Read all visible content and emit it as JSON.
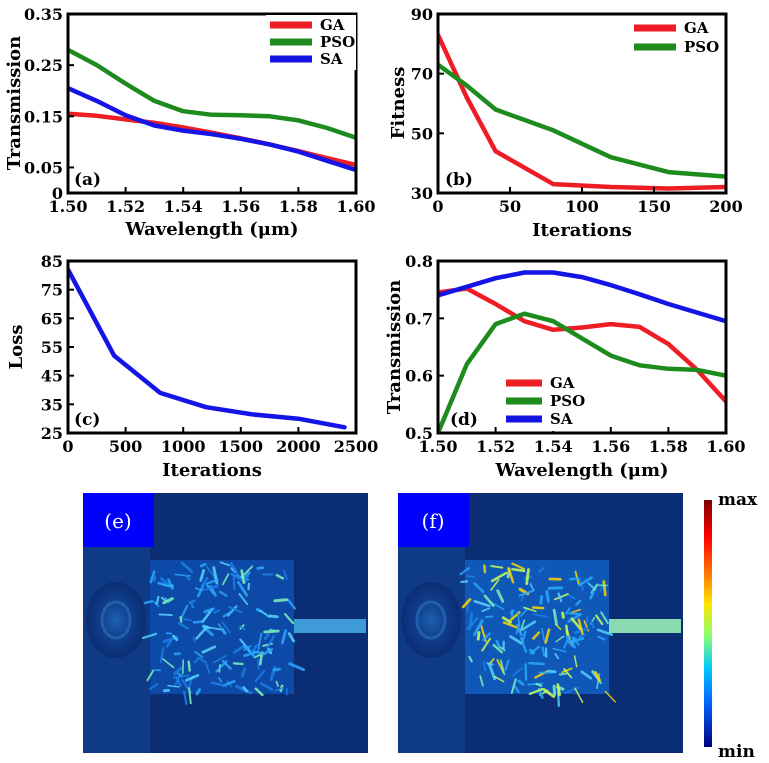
{
  "chart_data": [
    {
      "id": "a",
      "type": "line",
      "panel_label": "(a)",
      "xlabel": "Wavelength (μm)",
      "ylabel": "Transmission",
      "xlim": [
        1.5,
        1.6
      ],
      "ylim": [
        0,
        0.35
      ],
      "xticks": [
        1.5,
        1.52,
        1.54,
        1.56,
        1.58,
        1.6
      ],
      "xtick_labels": [
        "1.50",
        "1.52",
        "1.54",
        "1.56",
        "1.58",
        "1.60"
      ],
      "yticks": [
        0,
        0.05,
        0.15,
        0.25,
        0.35
      ],
      "ytick_labels": [
        "0",
        "0.05",
        "0.15",
        "0.25",
        "0.35"
      ],
      "legend_position": "top-right",
      "series": [
        {
          "name": "GA",
          "color": "#ee1c25",
          "x": [
            1.5,
            1.51,
            1.52,
            1.53,
            1.54,
            1.55,
            1.56,
            1.57,
            1.58,
            1.59,
            1.6
          ],
          "y": [
            0.155,
            0.151,
            0.144,
            0.137,
            0.128,
            0.118,
            0.107,
            0.095,
            0.082,
            0.068,
            0.055
          ]
        },
        {
          "name": "PSO",
          "color": "#1d8b1d",
          "x": [
            1.5,
            1.51,
            1.52,
            1.53,
            1.54,
            1.55,
            1.56,
            1.57,
            1.58,
            1.59,
            1.6
          ],
          "y": [
            0.28,
            0.25,
            0.214,
            0.18,
            0.16,
            0.153,
            0.152,
            0.15,
            0.142,
            0.127,
            0.108
          ]
        },
        {
          "name": "SA",
          "color": "#1414e6",
          "x": [
            1.5,
            1.51,
            1.52,
            1.53,
            1.54,
            1.55,
            1.56,
            1.57,
            1.58,
            1.59,
            1.6
          ],
          "y": [
            0.205,
            0.18,
            0.152,
            0.132,
            0.122,
            0.115,
            0.106,
            0.095,
            0.081,
            0.063,
            0.045
          ]
        }
      ]
    },
    {
      "id": "b",
      "type": "line",
      "panel_label": "(b)",
      "xlabel": "Iterations",
      "ylabel": "Fitness",
      "xlim": [
        0,
        200
      ],
      "ylim": [
        30,
        90
      ],
      "xticks": [
        0,
        50,
        100,
        150,
        200
      ],
      "xtick_labels": [
        "0",
        "50",
        "100",
        "150",
        "200"
      ],
      "yticks": [
        30,
        50,
        70,
        90
      ],
      "ytick_labels": [
        "30",
        "50",
        "70",
        "90"
      ],
      "legend_position": "top-right",
      "series": [
        {
          "name": "GA",
          "color": "#ee1c25",
          "x": [
            0,
            20,
            40,
            80,
            120,
            160,
            200
          ],
          "y": [
            83,
            62,
            44,
            33,
            32,
            31.5,
            32
          ]
        },
        {
          "name": "PSO",
          "color": "#1d8b1d",
          "x": [
            0,
            20,
            40,
            80,
            120,
            160,
            200
          ],
          "y": [
            73,
            66,
            58,
            51,
            42,
            37,
            35.5
          ]
        }
      ]
    },
    {
      "id": "c",
      "type": "line",
      "panel_label": "(c)",
      "xlabel": "Iterations",
      "ylabel": "Loss",
      "xlim": [
        0,
        2500
      ],
      "ylim": [
        25,
        85
      ],
      "xticks": [
        0,
        500,
        1000,
        1500,
        2000,
        2500
      ],
      "xtick_labels": [
        "0",
        "500",
        "1000",
        "1500",
        "2000",
        "2500"
      ],
      "yticks": [
        25,
        35,
        45,
        55,
        65,
        75,
        85
      ],
      "ytick_labels": [
        "25",
        "35",
        "45",
        "55",
        "65",
        "75",
        "85"
      ],
      "legend_position": "none",
      "series": [
        {
          "name": "SA",
          "color": "#1414e6",
          "x": [
            0,
            400,
            800,
            1200,
            1600,
            2000,
            2400
          ],
          "y": [
            82,
            52,
            39,
            34,
            31.5,
            30,
            27
          ]
        }
      ]
    },
    {
      "id": "d",
      "type": "line",
      "panel_label": "(d)",
      "xlabel": "Wavelength (μm)",
      "ylabel": "Transmission",
      "xlim": [
        1.5,
        1.6
      ],
      "ylim": [
        0.5,
        0.8
      ],
      "xticks": [
        1.5,
        1.52,
        1.54,
        1.56,
        1.58,
        1.6
      ],
      "xtick_labels": [
        "1.50",
        "1.52",
        "1.54",
        "1.56",
        "1.58",
        "1.60"
      ],
      "yticks": [
        0.5,
        0.6,
        0.7,
        0.8
      ],
      "ytick_labels": [
        "0.5",
        "0.6",
        "0.7",
        "0.8"
      ],
      "legend_position": "bottom-center",
      "series": [
        {
          "name": "GA",
          "color": "#ee1c25",
          "x": [
            1.5,
            1.51,
            1.52,
            1.53,
            1.54,
            1.55,
            1.56,
            1.57,
            1.58,
            1.59,
            1.6
          ],
          "y": [
            0.745,
            0.752,
            0.725,
            0.695,
            0.68,
            0.684,
            0.69,
            0.685,
            0.655,
            0.61,
            0.555
          ]
        },
        {
          "name": "PSO",
          "color": "#1d8b1d",
          "x": [
            1.5,
            1.51,
            1.52,
            1.53,
            1.54,
            1.55,
            1.56,
            1.57,
            1.58,
            1.59,
            1.6
          ],
          "y": [
            0.5,
            0.62,
            0.69,
            0.708,
            0.695,
            0.665,
            0.635,
            0.618,
            0.612,
            0.61,
            0.6
          ]
        },
        {
          "name": "SA",
          "color": "#1414e6",
          "x": [
            1.5,
            1.51,
            1.52,
            1.53,
            1.54,
            1.55,
            1.56,
            1.57,
            1.58,
            1.59,
            1.6
          ],
          "y": [
            0.74,
            0.755,
            0.77,
            0.78,
            0.78,
            0.772,
            0.758,
            0.742,
            0.725,
            0.71,
            0.695
          ]
        }
      ]
    }
  ],
  "field_maps": [
    {
      "id": "e",
      "label": "(e)"
    },
    {
      "id": "f",
      "label": "(f)"
    }
  ],
  "colorbar": {
    "max_label": "max",
    "min_label": "min",
    "colors": [
      "#7f0000",
      "#ff0000",
      "#ff7a00",
      "#ffe600",
      "#8aff6e",
      "#00c8ff",
      "#0064ff",
      "#000080"
    ]
  }
}
